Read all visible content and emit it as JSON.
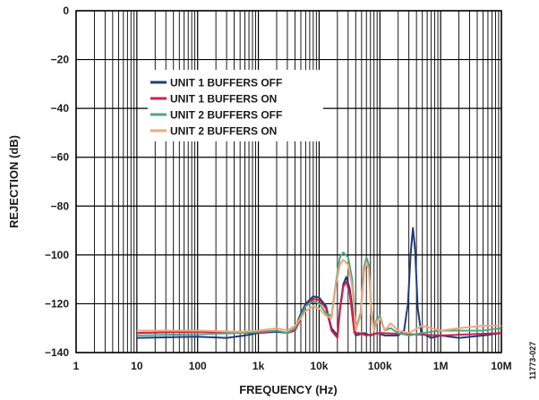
{
  "chart_data": {
    "type": "line",
    "xlabel": "FREQUENCY (Hz)",
    "ylabel": "REJECTION (dB)",
    "x_scale": "log",
    "xlim": [
      1,
      10000000
    ],
    "ylim": [
      -140,
      0
    ],
    "grid": true,
    "legend_position": "upper-left inside plot",
    "x_ticks": [
      {
        "value": 1,
        "label": "1"
      },
      {
        "value": 10,
        "label": "10"
      },
      {
        "value": 100,
        "label": "100"
      },
      {
        "value": 1000,
        "label": "1k"
      },
      {
        "value": 10000,
        "label": "10k"
      },
      {
        "value": 100000,
        "label": "100k"
      },
      {
        "value": 1000000,
        "label": "1M"
      },
      {
        "value": 10000000,
        "label": "10M"
      }
    ],
    "y_ticks": [
      {
        "value": 0,
        "label": "0"
      },
      {
        "value": -20,
        "label": "−20"
      },
      {
        "value": -40,
        "label": "−40"
      },
      {
        "value": -60,
        "label": "−60"
      },
      {
        "value": -80,
        "label": "−80"
      },
      {
        "value": -100,
        "label": "−100"
      },
      {
        "value": -120,
        "label": "−120"
      },
      {
        "value": -140,
        "label": "−140"
      }
    ],
    "series": [
      {
        "name": "UNIT 1 BUFFERS OFF",
        "color": "#1f3c78",
        "points": [
          [
            10,
            -134
          ],
          [
            100,
            -133.5
          ],
          [
            300,
            -134
          ],
          [
            600,
            -133
          ],
          [
            1000,
            -132
          ],
          [
            2000,
            -131.5
          ],
          [
            3000,
            -132
          ],
          [
            4000,
            -130
          ],
          [
            5000,
            -124
          ],
          [
            6000,
            -120
          ],
          [
            8000,
            -117
          ],
          [
            10000,
            -117.5
          ],
          [
            13000,
            -121
          ],
          [
            16000,
            -130
          ],
          [
            20000,
            -133
          ],
          [
            22000,
            -122
          ],
          [
            25000,
            -112
          ],
          [
            28000,
            -109
          ],
          [
            32000,
            -114
          ],
          [
            40000,
            -133
          ],
          [
            55000,
            -132
          ],
          [
            70000,
            -133
          ],
          [
            90000,
            -132
          ],
          [
            120000,
            -133
          ],
          [
            160000,
            -133
          ],
          [
            200000,
            -133
          ],
          [
            250000,
            -131
          ],
          [
            290000,
            -120
          ],
          [
            320000,
            -100
          ],
          [
            350000,
            -89
          ],
          [
            380000,
            -98
          ],
          [
            420000,
            -122
          ],
          [
            480000,
            -132
          ],
          [
            700000,
            -134
          ],
          [
            1000000,
            -133
          ],
          [
            2000000,
            -134
          ],
          [
            5000000,
            -133
          ],
          [
            10000000,
            -132
          ]
        ]
      },
      {
        "name": "UNIT 1 BUFFERS ON",
        "color": "#d61f48",
        "points": [
          [
            10,
            -132
          ],
          [
            100,
            -131.5
          ],
          [
            1000,
            -132
          ],
          [
            2000,
            -131
          ],
          [
            3000,
            -132
          ],
          [
            4000,
            -131
          ],
          [
            5000,
            -126
          ],
          [
            6000,
            -121
          ],
          [
            8000,
            -118
          ],
          [
            10000,
            -118.5
          ],
          [
            13000,
            -122
          ],
          [
            16000,
            -131
          ],
          [
            20000,
            -134
          ],
          [
            22000,
            -123
          ],
          [
            25000,
            -113
          ],
          [
            28000,
            -111
          ],
          [
            32000,
            -116
          ],
          [
            38000,
            -132
          ],
          [
            45000,
            -132
          ],
          [
            60000,
            -133
          ],
          [
            100000,
            -132
          ],
          [
            1000000,
            -133
          ],
          [
            10000000,
            -132
          ]
        ]
      },
      {
        "name": "UNIT 2 BUFFERS OFF",
        "color": "#48a88a",
        "points": [
          [
            10,
            -133
          ],
          [
            100,
            -132.5
          ],
          [
            500,
            -132
          ],
          [
            1000,
            -131.5
          ],
          [
            2000,
            -131
          ],
          [
            3000,
            -132
          ],
          [
            4000,
            -130
          ],
          [
            5000,
            -125
          ],
          [
            6000,
            -121
          ],
          [
            8000,
            -119
          ],
          [
            10000,
            -120
          ],
          [
            13000,
            -124
          ],
          [
            16000,
            -125
          ],
          [
            19000,
            -111
          ],
          [
            22000,
            -101
          ],
          [
            25000,
            -99
          ],
          [
            30000,
            -101
          ],
          [
            35000,
            -110
          ],
          [
            40000,
            -130
          ],
          [
            48000,
            -124
          ],
          [
            55000,
            -105
          ],
          [
            60000,
            -101
          ],
          [
            66000,
            -104
          ],
          [
            72000,
            -122
          ],
          [
            80000,
            -130
          ],
          [
            90000,
            -126
          ],
          [
            100000,
            -125
          ],
          [
            120000,
            -131
          ],
          [
            150000,
            -130
          ],
          [
            200000,
            -132
          ],
          [
            300000,
            -133
          ],
          [
            500000,
            -132
          ],
          [
            1000000,
            -131
          ],
          [
            2000000,
            -131
          ],
          [
            5000000,
            -131
          ],
          [
            10000000,
            -130
          ]
        ]
      },
      {
        "name": "UNIT 2 BUFFERS ON",
        "color": "#f4a67a",
        "points": [
          [
            10,
            -131
          ],
          [
            100,
            -131
          ],
          [
            500,
            -131.5
          ],
          [
            1000,
            -131
          ],
          [
            2000,
            -130
          ],
          [
            3000,
            -131
          ],
          [
            4000,
            -129
          ],
          [
            5000,
            -126
          ],
          [
            6000,
            -123
          ],
          [
            8000,
            -121
          ],
          [
            10000,
            -122
          ],
          [
            13000,
            -125
          ],
          [
            16000,
            -126
          ],
          [
            19000,
            -112
          ],
          [
            22000,
            -104
          ],
          [
            25000,
            -102
          ],
          [
            30000,
            -104
          ],
          [
            35000,
            -113
          ],
          [
            40000,
            -131
          ],
          [
            48000,
            -125
          ],
          [
            55000,
            -107
          ],
          [
            60000,
            -103
          ],
          [
            66000,
            -106
          ],
          [
            72000,
            -124
          ],
          [
            80000,
            -131
          ],
          [
            90000,
            -127
          ],
          [
            100000,
            -126
          ],
          [
            120000,
            -131
          ],
          [
            150000,
            -128
          ],
          [
            200000,
            -131
          ],
          [
            300000,
            -132
          ],
          [
            500000,
            -129
          ],
          [
            1000000,
            -131
          ],
          [
            2000000,
            -130
          ],
          [
            5000000,
            -129
          ],
          [
            10000000,
            -129
          ]
        ]
      }
    ],
    "legend": [
      {
        "label": "UNIT 1 BUFFERS OFF",
        "color": "#1f3c78"
      },
      {
        "label": "UNIT 1 BUFFERS ON",
        "color": "#d61f48"
      },
      {
        "label": "UNIT 2 BUFFERS OFF",
        "color": "#48a88a"
      },
      {
        "label": "UNIT 2 BUFFERS ON",
        "color": "#f4a67a"
      }
    ],
    "figure_id": "11773-027"
  }
}
